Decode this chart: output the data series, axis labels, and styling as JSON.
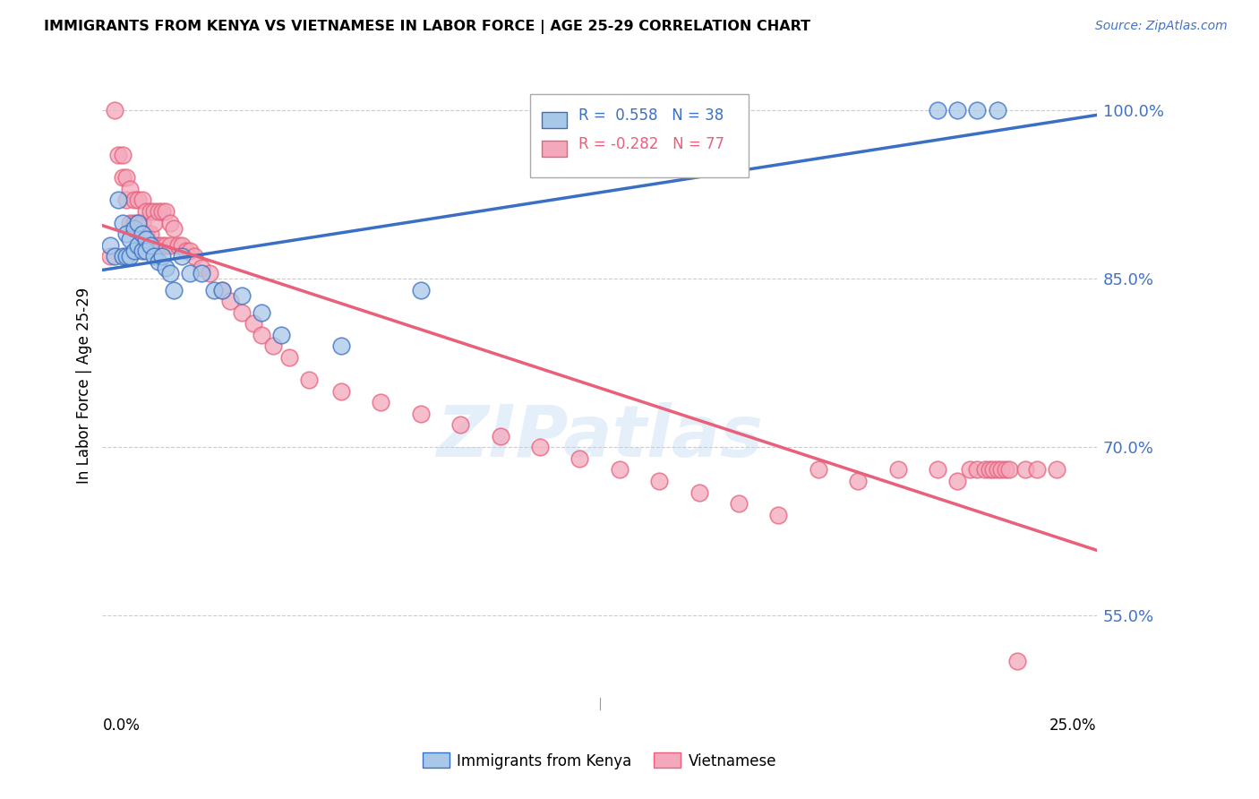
{
  "title": "IMMIGRANTS FROM KENYA VS VIETNAMESE IN LABOR FORCE | AGE 25-29 CORRELATION CHART",
  "source": "Source: ZipAtlas.com",
  "ylabel": "In Labor Force | Age 25-29",
  "xmin": 0.0,
  "xmax": 0.25,
  "ymin": 0.47,
  "ymax": 1.04,
  "kenya_R": 0.558,
  "kenya_N": 38,
  "viet_R": -0.282,
  "viet_N": 77,
  "kenya_color": "#a8c8e8",
  "viet_color": "#f4a8bc",
  "kenya_line_color": "#3a6fc4",
  "viet_line_color": "#e8607a",
  "ytick_vals": [
    0.55,
    0.7,
    0.85,
    1.0
  ],
  "ytick_labels": [
    "55.0%",
    "70.0%",
    "85.0%",
    "100.0%"
  ],
  "kenya_scatter_x": [
    0.002,
    0.003,
    0.004,
    0.005,
    0.005,
    0.006,
    0.006,
    0.007,
    0.007,
    0.008,
    0.008,
    0.009,
    0.009,
    0.01,
    0.01,
    0.011,
    0.011,
    0.012,
    0.013,
    0.014,
    0.015,
    0.016,
    0.017,
    0.018,
    0.02,
    0.022,
    0.025,
    0.028,
    0.03,
    0.035,
    0.04,
    0.045,
    0.06,
    0.08,
    0.21,
    0.215,
    0.22,
    0.225
  ],
  "kenya_scatter_y": [
    0.88,
    0.87,
    0.92,
    0.9,
    0.87,
    0.89,
    0.87,
    0.885,
    0.87,
    0.895,
    0.875,
    0.9,
    0.88,
    0.89,
    0.875,
    0.885,
    0.875,
    0.88,
    0.87,
    0.865,
    0.87,
    0.86,
    0.855,
    0.84,
    0.87,
    0.855,
    0.855,
    0.84,
    0.84,
    0.835,
    0.82,
    0.8,
    0.79,
    0.84,
    1.0,
    1.0,
    1.0,
    1.0
  ],
  "viet_scatter_x": [
    0.002,
    0.003,
    0.004,
    0.005,
    0.005,
    0.006,
    0.006,
    0.007,
    0.007,
    0.008,
    0.008,
    0.009,
    0.009,
    0.01,
    0.01,
    0.01,
    0.011,
    0.011,
    0.012,
    0.012,
    0.013,
    0.013,
    0.013,
    0.014,
    0.014,
    0.015,
    0.015,
    0.016,
    0.016,
    0.017,
    0.017,
    0.018,
    0.019,
    0.02,
    0.021,
    0.022,
    0.023,
    0.025,
    0.027,
    0.03,
    0.032,
    0.035,
    0.038,
    0.04,
    0.043,
    0.047,
    0.052,
    0.06,
    0.07,
    0.08,
    0.09,
    0.1,
    0.11,
    0.12,
    0.13,
    0.14,
    0.15,
    0.16,
    0.17,
    0.18,
    0.19,
    0.2,
    0.21,
    0.215,
    0.218,
    0.22,
    0.222,
    0.223,
    0.224,
    0.225,
    0.226,
    0.227,
    0.228,
    0.23,
    0.232,
    0.235,
    0.24
  ],
  "viet_scatter_y": [
    0.87,
    1.0,
    0.96,
    0.96,
    0.94,
    0.94,
    0.92,
    0.93,
    0.9,
    0.92,
    0.9,
    0.92,
    0.9,
    0.92,
    0.9,
    0.88,
    0.91,
    0.89,
    0.91,
    0.89,
    0.91,
    0.9,
    0.88,
    0.91,
    0.88,
    0.91,
    0.88,
    0.91,
    0.88,
    0.9,
    0.88,
    0.895,
    0.88,
    0.88,
    0.875,
    0.875,
    0.87,
    0.86,
    0.855,
    0.84,
    0.83,
    0.82,
    0.81,
    0.8,
    0.79,
    0.78,
    0.76,
    0.75,
    0.74,
    0.73,
    0.72,
    0.71,
    0.7,
    0.69,
    0.68,
    0.67,
    0.66,
    0.65,
    0.64,
    0.68,
    0.67,
    0.68,
    0.68,
    0.67,
    0.68,
    0.68,
    0.68,
    0.68,
    0.68,
    0.68,
    0.68,
    0.68,
    0.68,
    0.51,
    0.68,
    0.68,
    0.68
  ]
}
